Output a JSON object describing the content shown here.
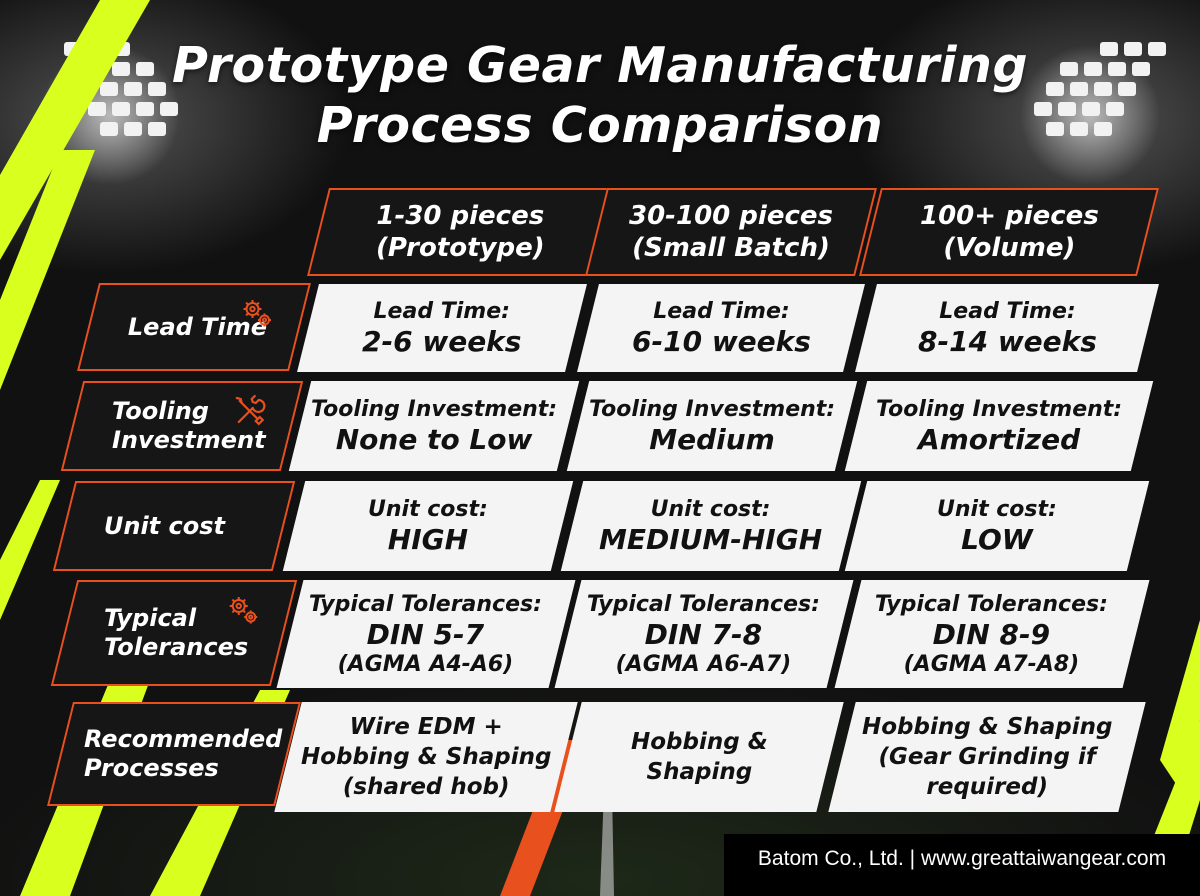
{
  "title": {
    "line1": "Prototype Gear Manufacturing",
    "line2": "Process Comparison"
  },
  "columns": [
    {
      "line1": "1-30 pieces",
      "line2": "(Prototype)"
    },
    {
      "line1": "30-100 pieces",
      "line2": "(Small Batch)"
    },
    {
      "line1": "100+ pieces",
      "line2": "(Volume)"
    }
  ],
  "rows": {
    "lead_time": {
      "label": "Lead Time",
      "icon": "gears-icon",
      "cells": [
        {
          "label": "Lead Time:",
          "value": "2-6 weeks"
        },
        {
          "label": "Lead Time:",
          "value": "6-10 weeks"
        },
        {
          "label": "Lead Time:",
          "value": "8-14 weeks"
        }
      ]
    },
    "tooling": {
      "label_line1": "Tooling",
      "label_line2": "Investment",
      "icon": "wrench-screwdriver-icon",
      "cells": [
        {
          "label": "Tooling Investment:",
          "value": "None to Low"
        },
        {
          "label": "Tooling Investment:",
          "value": "Medium"
        },
        {
          "label": "Tooling Investment:",
          "value": "Amortized"
        }
      ]
    },
    "unit_cost": {
      "label": "Unit cost",
      "cells": [
        {
          "label": "Unit cost:",
          "value": "HIGH"
        },
        {
          "label": "Unit cost:",
          "value": "MEDIUM-HIGH"
        },
        {
          "label": "Unit cost:",
          "value": "LOW"
        }
      ]
    },
    "tolerances": {
      "label_line1": "Typical",
      "label_line2": "Tolerances",
      "icon": "gears-icon",
      "cells": [
        {
          "label": "Typical Tolerances:",
          "value": "DIN 5-7",
          "sub": "(AGMA A4-A6)"
        },
        {
          "label": "Typical Tolerances:",
          "value": "DIN 7-8",
          "sub": "(AGMA A6-A7)"
        },
        {
          "label": "Typical Tolerances:",
          "value": "DIN 8-9",
          "sub": "(AGMA A7-A8)"
        }
      ]
    },
    "processes": {
      "label_line1": "Recommended",
      "label_line2": "Processes",
      "cells": [
        {
          "lines": [
            "Wire EDM +",
            "Hobbing & Shaping",
            "(shared hob)"
          ]
        },
        {
          "lines": [
            "Hobbing &",
            "Shaping"
          ]
        },
        {
          "lines": [
            "Hobbing & Shaping",
            "(Gear Grinding if",
            "required)"
          ]
        }
      ]
    }
  },
  "footer": "Batom Co., Ltd. | www.greattaiwangear.com",
  "colors": {
    "accent": "#e8501e",
    "neon": "#d9ff1e",
    "cell_bg": "#f4f4f4",
    "dark": "#161616"
  }
}
